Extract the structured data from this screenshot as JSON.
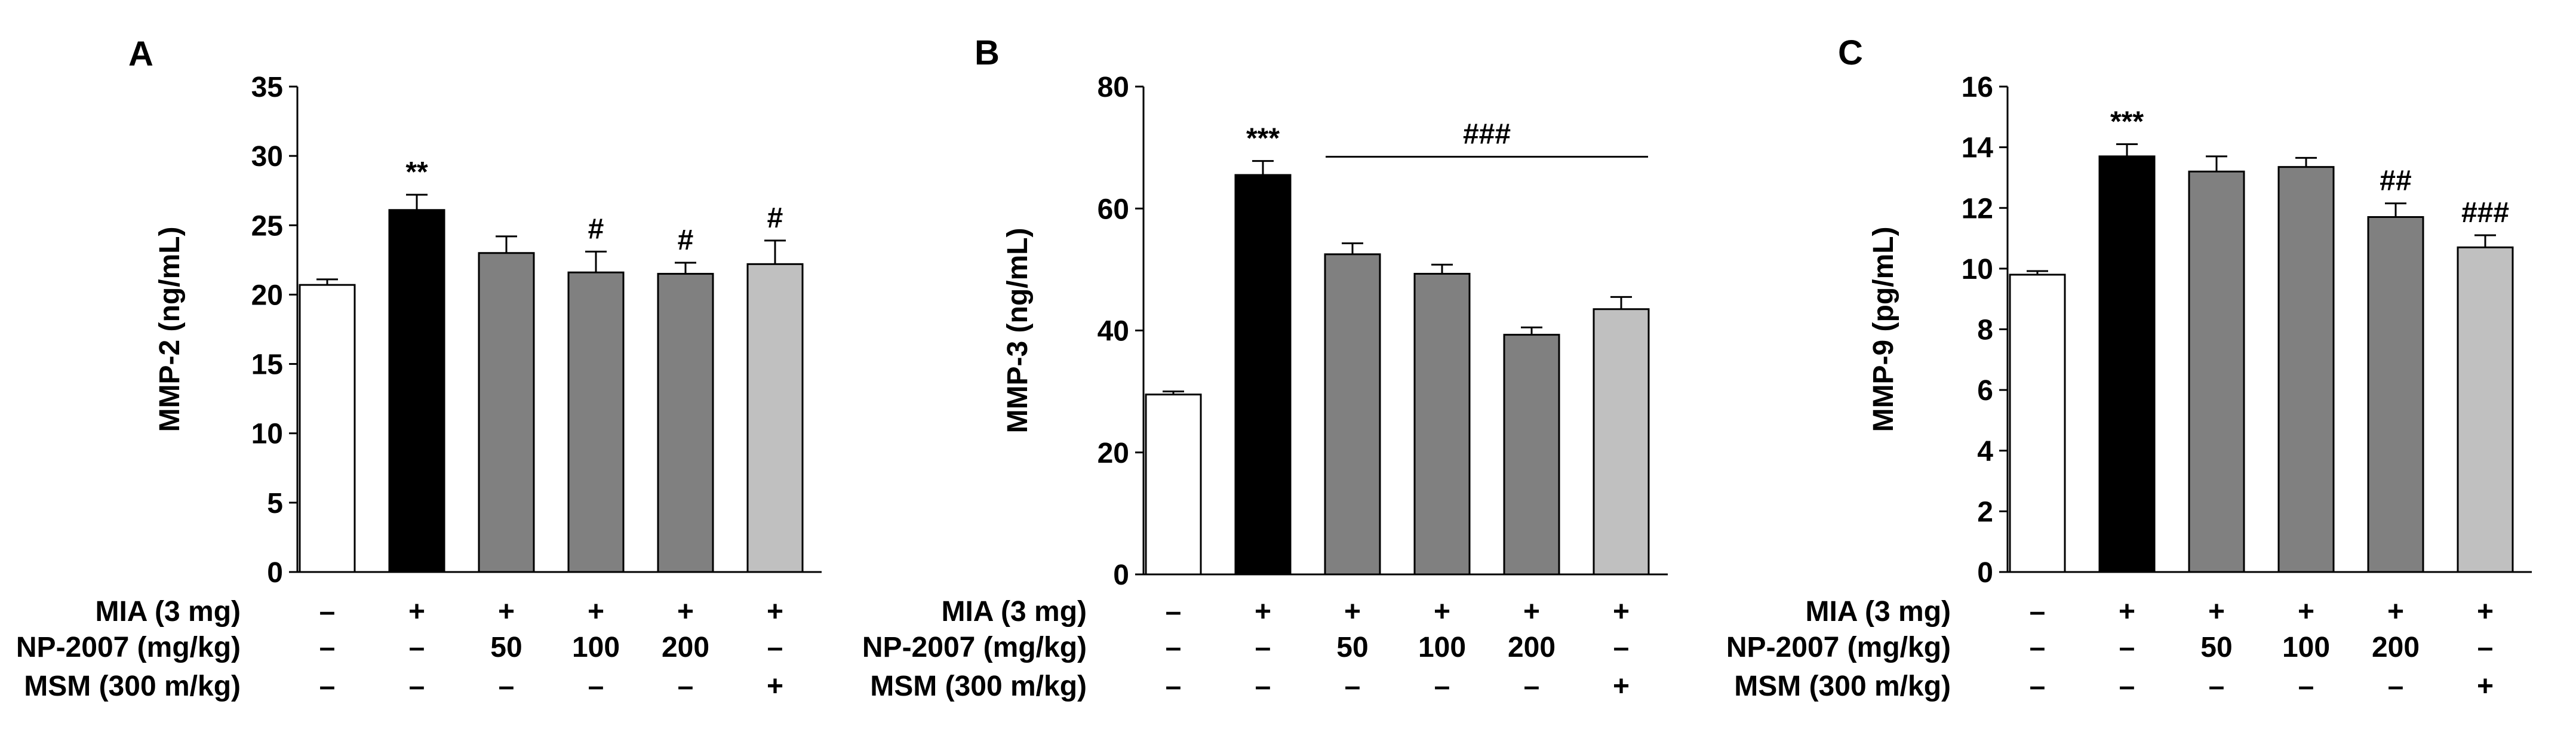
{
  "chart_data": [
    {
      "panel": "A",
      "type": "bar",
      "ylabel": "MMP-2 (ng/mL)",
      "ylim": [
        0,
        35
      ],
      "yticks": [
        0,
        5,
        10,
        15,
        20,
        25,
        30,
        35
      ],
      "values": [
        20.7,
        26.1,
        23.0,
        21.6,
        21.5,
        22.2
      ],
      "errors": [
        0.4,
        1.1,
        1.2,
        1.5,
        0.8,
        1.7
      ],
      "colors": [
        "#ffffff",
        "#000000",
        "#808080",
        "#808080",
        "#808080",
        "#c0c0c0"
      ],
      "annotations": [
        "",
        "**",
        "",
        "#",
        "#",
        "#"
      ],
      "group_bar": null
    },
    {
      "panel": "B",
      "type": "bar",
      "ylabel": "MMP-3 (ng/mL)",
      "ylim": [
        0,
        80
      ],
      "yticks": [
        0,
        20,
        40,
        60,
        80
      ],
      "values": [
        29.5,
        65.5,
        52.5,
        49.3,
        39.3,
        43.5
      ],
      "errors": [
        0.5,
        2.3,
        1.8,
        1.5,
        1.2,
        2.0
      ],
      "colors": [
        "#ffffff",
        "#000000",
        "#808080",
        "#808080",
        "#808080",
        "#c0c0c0"
      ],
      "annotations": [
        "",
        "***",
        "",
        "",
        "",
        ""
      ],
      "group_bar": {
        "from": 2,
        "to": 5,
        "label": "###"
      }
    },
    {
      "panel": "C",
      "type": "bar",
      "ylabel": "MMP-9 (pg/mL)",
      "ylim": [
        0,
        16
      ],
      "yticks": [
        0,
        2,
        4,
        6,
        8,
        10,
        12,
        14,
        16
      ],
      "values": [
        9.8,
        13.7,
        13.2,
        13.35,
        11.7,
        10.7
      ],
      "errors": [
        0.12,
        0.4,
        0.5,
        0.3,
        0.45,
        0.4
      ],
      "colors": [
        "#ffffff",
        "#000000",
        "#808080",
        "#808080",
        "#808080",
        "#c0c0c0"
      ],
      "annotations": [
        "",
        "***",
        "",
        "",
        "##",
        "###"
      ],
      "group_bar": null
    }
  ],
  "treatment_table": {
    "rows": [
      {
        "label": "MIA (3 mg)",
        "cells": [
          "–",
          "+",
          "+",
          "+",
          "+",
          "+"
        ]
      },
      {
        "label": "NP-2007 (mg/kg)",
        "cells": [
          "–",
          "–",
          "50",
          "100",
          "200",
          "–"
        ]
      },
      {
        "label": "MSM (300 m/kg)",
        "cells": [
          "–",
          "–",
          "–",
          "–",
          "–",
          "+"
        ]
      }
    ]
  }
}
